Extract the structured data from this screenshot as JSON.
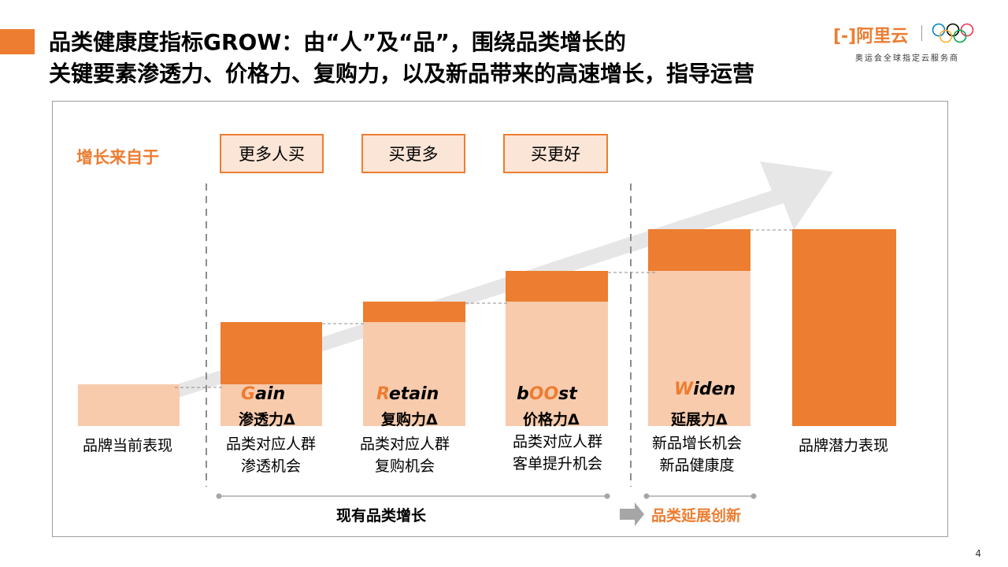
{
  "title": {
    "line1": "品类健康度指标GROW：由“人”及“品”，围绕品类增长的",
    "line2": "关键要素渗透力、价格力、复购力，以及新品带来的高速增长，指导运营"
  },
  "logo": {
    "brand": "[-]阿里云",
    "subtitle": "奥运会全球指定云服务商"
  },
  "diagram": {
    "growth_from_label": "增长来自于",
    "buy_boxes": [
      "更多人买",
      "买更多",
      "买更好"
    ],
    "metrics": [
      {
        "first_letter": "G",
        "rest": "ain",
        "cn": "渗透力Δ"
      },
      {
        "first_letter": "R",
        "rest": "etain",
        "cn": "复购力Δ"
      },
      {
        "prefix": "b",
        "highlight": "OO",
        "suffix": "st",
        "cn": "价格力Δ"
      },
      {
        "first_letter": "W",
        "rest": "iden",
        "cn": "延展力Δ"
      }
    ],
    "captions": [
      {
        "line1": "品牌当前表现",
        "line2": ""
      },
      {
        "line1": "品类对应人群",
        "line2": "渗透机会"
      },
      {
        "line1": "品类对应人群",
        "line2": "复购机会"
      },
      {
        "line1": "品类对应人群",
        "line2": "客单提升机会"
      },
      {
        "line1": "新品增长机会",
        "line2": "新品健康度"
      },
      {
        "line1": "品牌潜力表现",
        "line2": ""
      }
    ],
    "footer": {
      "existing": "现有品类增长",
      "extension": "品类延展创新"
    }
  },
  "page_number": "4",
  "colors": {
    "accent": "#ED7D31",
    "light": "#F8CBAD",
    "box_fill": "#FBE5D6",
    "arrow": "#E6E6E6"
  }
}
